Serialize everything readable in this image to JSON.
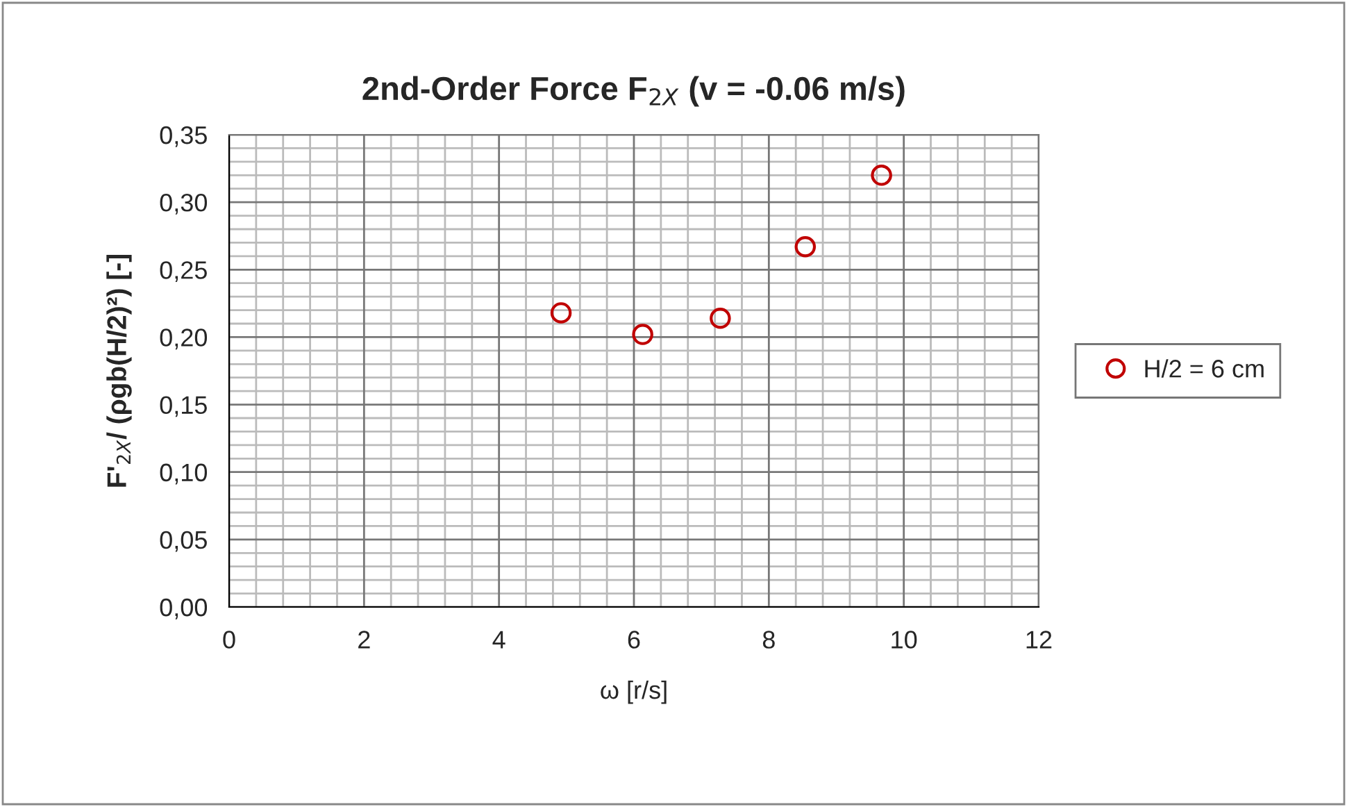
{
  "chart_data": {
    "type": "scatter",
    "title": "2nd-Order Force F$_{2X}$ (v = -0.06 m/s)",
    "xlabel": "ω [r/s]",
    "ylabel": "F'$_{2X}$/ (ρgb(H/2)²) [-]",
    "series": [
      {
        "name": "H/2 = 6 cm",
        "color": "#c00000",
        "x": [
          4.92,
          6.13,
          7.28,
          8.54,
          9.67
        ],
        "values": [
          0.218,
          0.202,
          0.214,
          0.267,
          0.32
        ]
      }
    ],
    "xlim": [
      0,
      12
    ],
    "xticks": [
      0,
      2,
      4,
      6,
      8,
      10,
      12
    ],
    "ylim": [
      0,
      0.35
    ],
    "yticks": [
      {
        "value": 0,
        "label": "0,00"
      },
      {
        "value": 0.05,
        "label": "0,05"
      },
      {
        "value": 0.1,
        "label": "0,10"
      },
      {
        "value": 0.15,
        "label": "0,15"
      },
      {
        "value": 0.2,
        "label": "0,20"
      },
      {
        "value": 0.25,
        "label": "0,25"
      },
      {
        "value": 0.3,
        "label": "0,30"
      },
      {
        "value": 0.35,
        "label": "0,35"
      }
    ],
    "grid": true,
    "legend": "right",
    "marker": "circle"
  }
}
